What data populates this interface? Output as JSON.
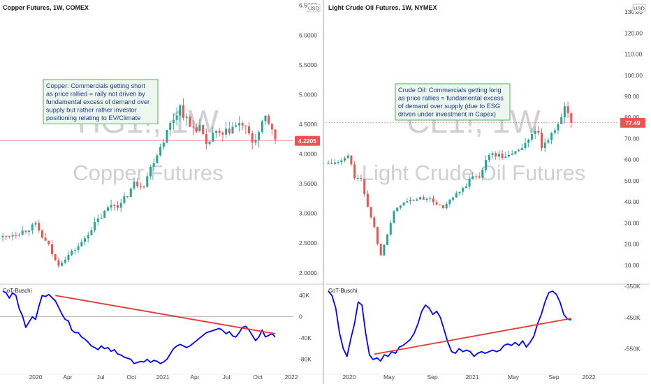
{
  "colors": {
    "up": "#26a69a",
    "down": "#ef5350",
    "cot_line": "#0000ff",
    "trend_line": "#e53935",
    "grid": "#e0e3eb",
    "axis_text": "#434651",
    "watermark": "#cfcfd4",
    "annotation_border": "#4caf50",
    "annotation_bg": "#eef7ee"
  },
  "chart_data": [
    {
      "type": "candlestick",
      "title": "Copper Futures, 1W, COMEX",
      "watermark_ticker": "HG1!, 1W",
      "watermark_name": "Copper Futures",
      "currency": "USD",
      "last_price": "4.2205",
      "price_axis": {
        "ylim": [
          1.88,
          6.52
        ],
        "ticks": [
          "2.0000",
          "2.5000",
          "3.0000",
          "3.5000",
          "4.0000",
          "4.5000",
          "5.0000",
          "5.5000",
          "6.0000",
          "6.5000"
        ],
        "tick_values": [
          2.0,
          2.5,
          3.0,
          3.5,
          4.0,
          4.5,
          5.0,
          5.5,
          6.0,
          6.5
        ]
      },
      "x_ticks": [
        "2020",
        "Apr",
        "Jul",
        "Oct",
        "2021",
        "Apr",
        "Jul",
        "Oct",
        "2022"
      ],
      "annotation": "Copper: Commercials getting short\nas price rallied = rally not driven by\nfundamental excess of demand over\nsupply but rather rather investor\npositioning relating to EV/Climate",
      "price_path": [
        [
          0,
          2.6
        ],
        [
          6,
          2.7
        ],
        [
          10,
          2.8
        ],
        [
          12,
          2.6
        ],
        [
          14,
          2.45
        ],
        [
          16,
          2.2
        ],
        [
          17,
          2.15
        ],
        [
          20,
          2.3
        ],
        [
          24,
          2.5
        ],
        [
          27,
          2.75
        ],
        [
          30,
          2.95
        ],
        [
          33,
          3.15
        ],
        [
          36,
          3.15
        ],
        [
          40,
          3.5
        ],
        [
          43,
          3.5
        ],
        [
          46,
          3.9
        ],
        [
          49,
          4.25
        ],
        [
          51,
          4.5
        ],
        [
          54,
          4.8
        ],
        [
          57,
          4.45
        ],
        [
          60,
          4.45
        ],
        [
          62,
          4.1
        ],
        [
          64,
          4.35
        ],
        [
          67,
          4.3
        ],
        [
          70,
          4.45
        ],
        [
          73,
          4.5
        ],
        [
          76,
          4.2
        ],
        [
          78,
          4.35
        ],
        [
          80,
          4.6
        ],
        [
          82,
          4.45
        ],
        [
          83,
          4.2
        ]
      ],
      "indicator": {
        "label": "CoT-Buschi",
        "ticks": [
          "40K",
          "0",
          "-40K",
          "-80K"
        ],
        "tick_values": [
          40000,
          0,
          -40000,
          -80000
        ],
        "ylim": [
          -95000,
          60000
        ],
        "series": [
          48000,
          45000,
          35000,
          45000,
          40000,
          15000,
          2000,
          -20000,
          -10000,
          0,
          -5000,
          20000,
          40000,
          38000,
          42000,
          36000,
          30000,
          18000,
          5000,
          -5000,
          -8000,
          -25000,
          -30000,
          -30000,
          -38000,
          -42000,
          -48000,
          -55000,
          -58000,
          -62000,
          -55000,
          -60000,
          -58000,
          -65000,
          -62000,
          -70000,
          -72000,
          -76000,
          -78000,
          -80000,
          -88000,
          -86000,
          -84000,
          -85000,
          -80000,
          -86000,
          -82000,
          -84000,
          -88000,
          -85000,
          -80000,
          -70000,
          -60000,
          -55000,
          -52000,
          -55000,
          -58000,
          -55000,
          -50000,
          -45000,
          -40000,
          -35000,
          -30000,
          -28000,
          -26000,
          -24000,
          -22000,
          -26000,
          -32000,
          -28000,
          -36000,
          -38000,
          -30000,
          -20000,
          -18000,
          -25000,
          -35000,
          -45000,
          -38000,
          -25000,
          -38000,
          -35000,
          -32000,
          -38000
        ],
        "trend": [
          [
            16,
            40000
          ],
          [
            83,
            -32000
          ]
        ]
      }
    },
    {
      "type": "candlestick",
      "title": "Light Crude Oil Futures, 1W, NYMEX",
      "watermark_ticker": "CL1!, 1W",
      "watermark_name": "Light Crude Oil Futures",
      "currency": "USD",
      "last_price": "77.49",
      "price_axis": {
        "ylim": [
          5,
          133
        ],
        "ticks": [
          "10.00",
          "20.00",
          "30.00",
          "40.00",
          "50.00",
          "60.00",
          "70.00",
          "80.00",
          "90.00",
          "100.00",
          "110.00",
          "120.00",
          "130.00"
        ],
        "tick_values": [
          10,
          20,
          30,
          40,
          50,
          60,
          70,
          80,
          90,
          100,
          110,
          120,
          130
        ]
      },
      "x_ticks": [
        "2020",
        "May",
        "Sep",
        "2021",
        "May",
        "Sep",
        "2022"
      ],
      "annotation": "Crude Oil: Commercials getting long\nas price rallies = fundamental excess\nof demand over supply (due to ESG\ndriven under investment in Capex)",
      "price_path": [
        [
          0,
          58
        ],
        [
          4,
          59
        ],
        [
          6,
          62
        ],
        [
          8,
          52
        ],
        [
          10,
          50
        ],
        [
          12,
          38
        ],
        [
          14,
          28
        ],
        [
          15,
          20
        ],
        [
          16,
          15
        ],
        [
          18,
          25
        ],
        [
          20,
          35
        ],
        [
          22,
          39
        ],
        [
          26,
          41
        ],
        [
          30,
          42
        ],
        [
          33,
          39
        ],
        [
          35,
          37
        ],
        [
          38,
          42
        ],
        [
          41,
          46
        ],
        [
          44,
          52
        ],
        [
          46,
          52
        ],
        [
          48,
          60
        ],
        [
          50,
          63
        ],
        [
          54,
          61
        ],
        [
          58,
          65
        ],
        [
          60,
          67
        ],
        [
          62,
          73
        ],
        [
          64,
          72
        ],
        [
          65,
          66
        ],
        [
          67,
          68
        ],
        [
          69,
          75
        ],
        [
          71,
          81
        ],
        [
          72,
          84
        ],
        [
          73,
          82
        ],
        [
          74,
          77.5
        ]
      ],
      "indicator": {
        "label": "CoT-Buschi",
        "ticks": [
          "-350K",
          "-450K",
          "-550K"
        ],
        "tick_values": [
          -350000,
          -450000,
          -550000
        ],
        "ylim": [
          -610000,
          -345000
        ],
        "series": [
          -365000,
          -380000,
          -420000,
          -500000,
          -550000,
          -575000,
          -520000,
          -470000,
          -400000,
          -410000,
          -500000,
          -570000,
          -585000,
          -580000,
          -590000,
          -570000,
          -575000,
          -560000,
          -565000,
          -545000,
          -540000,
          -530000,
          -520000,
          -500000,
          -470000,
          -430000,
          -410000,
          -420000,
          -440000,
          -430000,
          -450000,
          -490000,
          -530000,
          -560000,
          -565000,
          -550000,
          -560000,
          -555000,
          -560000,
          -575000,
          -565000,
          -560000,
          -565000,
          -560000,
          -555000,
          -560000,
          -555000,
          -540000,
          -535000,
          -540000,
          -530000,
          -540000,
          -525000,
          -545000,
          -530000,
          -510000,
          -470000,
          -440000,
          -400000,
          -370000,
          -365000,
          -375000,
          -400000,
          -440000,
          -455000,
          -458000
        ],
        "trend": [
          [
            14,
            -568000
          ],
          [
            74,
            -453000
          ]
        ]
      }
    }
  ]
}
